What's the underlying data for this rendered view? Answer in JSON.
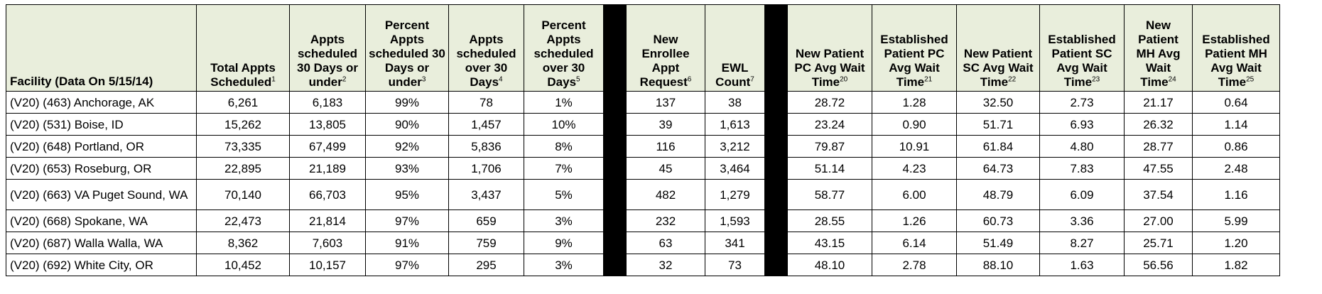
{
  "headers": [
    {
      "label": "Facility (Data On 5/15/14)",
      "sup": ""
    },
    {
      "label": "Total Appts Scheduled",
      "sup": "1"
    },
    {
      "label": "Appts scheduled 30 Days or under",
      "sup": "2"
    },
    {
      "label": "Percent Appts scheduled 30 Days or under",
      "sup": "3"
    },
    {
      "label": "Appts scheduled over 30 Days",
      "sup": "4"
    },
    {
      "label": "Percent Appts scheduled over 30 Days",
      "sup": "5"
    },
    {
      "label": "New Enrollee Appt Request",
      "sup": "6"
    },
    {
      "label": "EWL Count",
      "sup": "7"
    },
    {
      "label": "New Patient PC Avg Wait Time",
      "sup": "20"
    },
    {
      "label": "Established Patient PC Avg  Wait Time",
      "sup": "21"
    },
    {
      "label": "New Patient SC Avg Wait Time",
      "sup": "22"
    },
    {
      "label": "Established Patient SC Avg Wait Time",
      "sup": "23"
    },
    {
      "label": "New Patient MH Avg Wait Time",
      "sup": "24"
    },
    {
      "label": "Established Patient MH Avg Wait Time",
      "sup": "25"
    }
  ],
  "rows": [
    [
      "(V20) (463) Anchorage, AK",
      "6,261",
      "6,183",
      "99%",
      "78",
      "1%",
      "137",
      "38",
      "28.72",
      "1.28",
      "32.50",
      "2.73",
      "21.17",
      "0.64"
    ],
    [
      "(V20) (531) Boise, ID",
      "15,262",
      "13,805",
      "90%",
      "1,457",
      "10%",
      "39",
      "1,613",
      "23.24",
      "0.90",
      "51.71",
      "6.93",
      "26.32",
      "1.14"
    ],
    [
      "(V20) (648) Portland, OR",
      "73,335",
      "67,499",
      "92%",
      "5,836",
      "8%",
      "116",
      "3,212",
      "79.87",
      "10.91",
      "61.84",
      "4.80",
      "28.77",
      "0.86"
    ],
    [
      "(V20) (653) Roseburg, OR",
      "22,895",
      "21,189",
      "93%",
      "1,706",
      "7%",
      "45",
      "3,464",
      "51.14",
      "4.23",
      "64.73",
      "7.83",
      "47.55",
      "2.48"
    ],
    [
      "(V20) (663) VA Puget Sound, WA",
      "70,140",
      "66,703",
      "95%",
      "3,437",
      "5%",
      "482",
      "1,279",
      "58.77",
      "6.00",
      "48.79",
      "6.09",
      "37.54",
      "1.16"
    ],
    [
      "(V20) (668) Spokane, WA",
      "22,473",
      "21,814",
      "97%",
      "659",
      "3%",
      "232",
      "1,593",
      "28.55",
      "1.26",
      "60.73",
      "3.36",
      "27.00",
      "5.99"
    ],
    [
      "(V20) (687) Walla Walla, WA",
      "8,362",
      "7,603",
      "91%",
      "759",
      "9%",
      "63",
      "341",
      "43.15",
      "6.14",
      "51.49",
      "8.27",
      "25.71",
      "1.20"
    ],
    [
      "(V20) (692) White City, OR",
      "10,452",
      "10,157",
      "97%",
      "295",
      "3%",
      "32",
      "73",
      "48.10",
      "2.78",
      "88.10",
      "1.63",
      "56.56",
      "1.82"
    ]
  ]
}
